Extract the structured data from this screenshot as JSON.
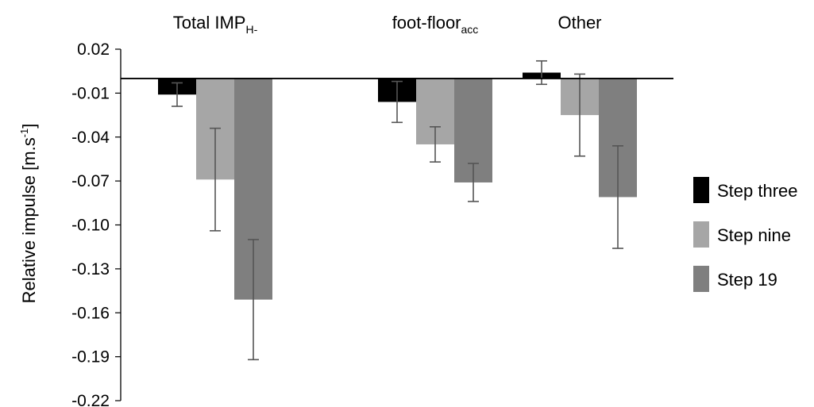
{
  "chart_data": {
    "type": "bar",
    "title": "",
    "xlabel": "",
    "ylabel": "Relative impulse [m.s⁻¹]",
    "ylabel_main": "Relative impulse [m.s",
    "ylabel_sup": "-1",
    "ylabel_end": "]",
    "ylim": [
      -0.22,
      0.02
    ],
    "yticks": [
      0.02,
      -0.01,
      -0.04,
      -0.07,
      -0.1,
      -0.13,
      -0.16,
      -0.19,
      -0.22
    ],
    "ytick_labels": [
      "0.02",
      "-0.01",
      "-0.04",
      "-0.07",
      "-0.10",
      "-0.13",
      "-0.16",
      "-0.19",
      "-0.22"
    ],
    "categories": [
      {
        "main": "Total IMP",
        "sub": "H-"
      },
      {
        "main": "foot-floor",
        "sub": "acc"
      },
      {
        "main": "Other",
        "sub": ""
      }
    ],
    "series": [
      {
        "name": "Step three",
        "color": "#000000",
        "values": [
          -0.011,
          -0.016,
          0.004
        ],
        "errors": [
          0.008,
          0.014,
          0.008
        ]
      },
      {
        "name": "Step nine",
        "color": "#a6a6a6",
        "values": [
          -0.069,
          -0.045,
          -0.025
        ],
        "errors": [
          0.035,
          0.012,
          0.028
        ]
      },
      {
        "name": "Step 19",
        "color": "#7f7f7f",
        "values": [
          -0.151,
          -0.071,
          -0.081
        ],
        "errors": [
          0.041,
          0.013,
          0.035
        ]
      }
    ],
    "grid": false,
    "legend_position": "right"
  }
}
